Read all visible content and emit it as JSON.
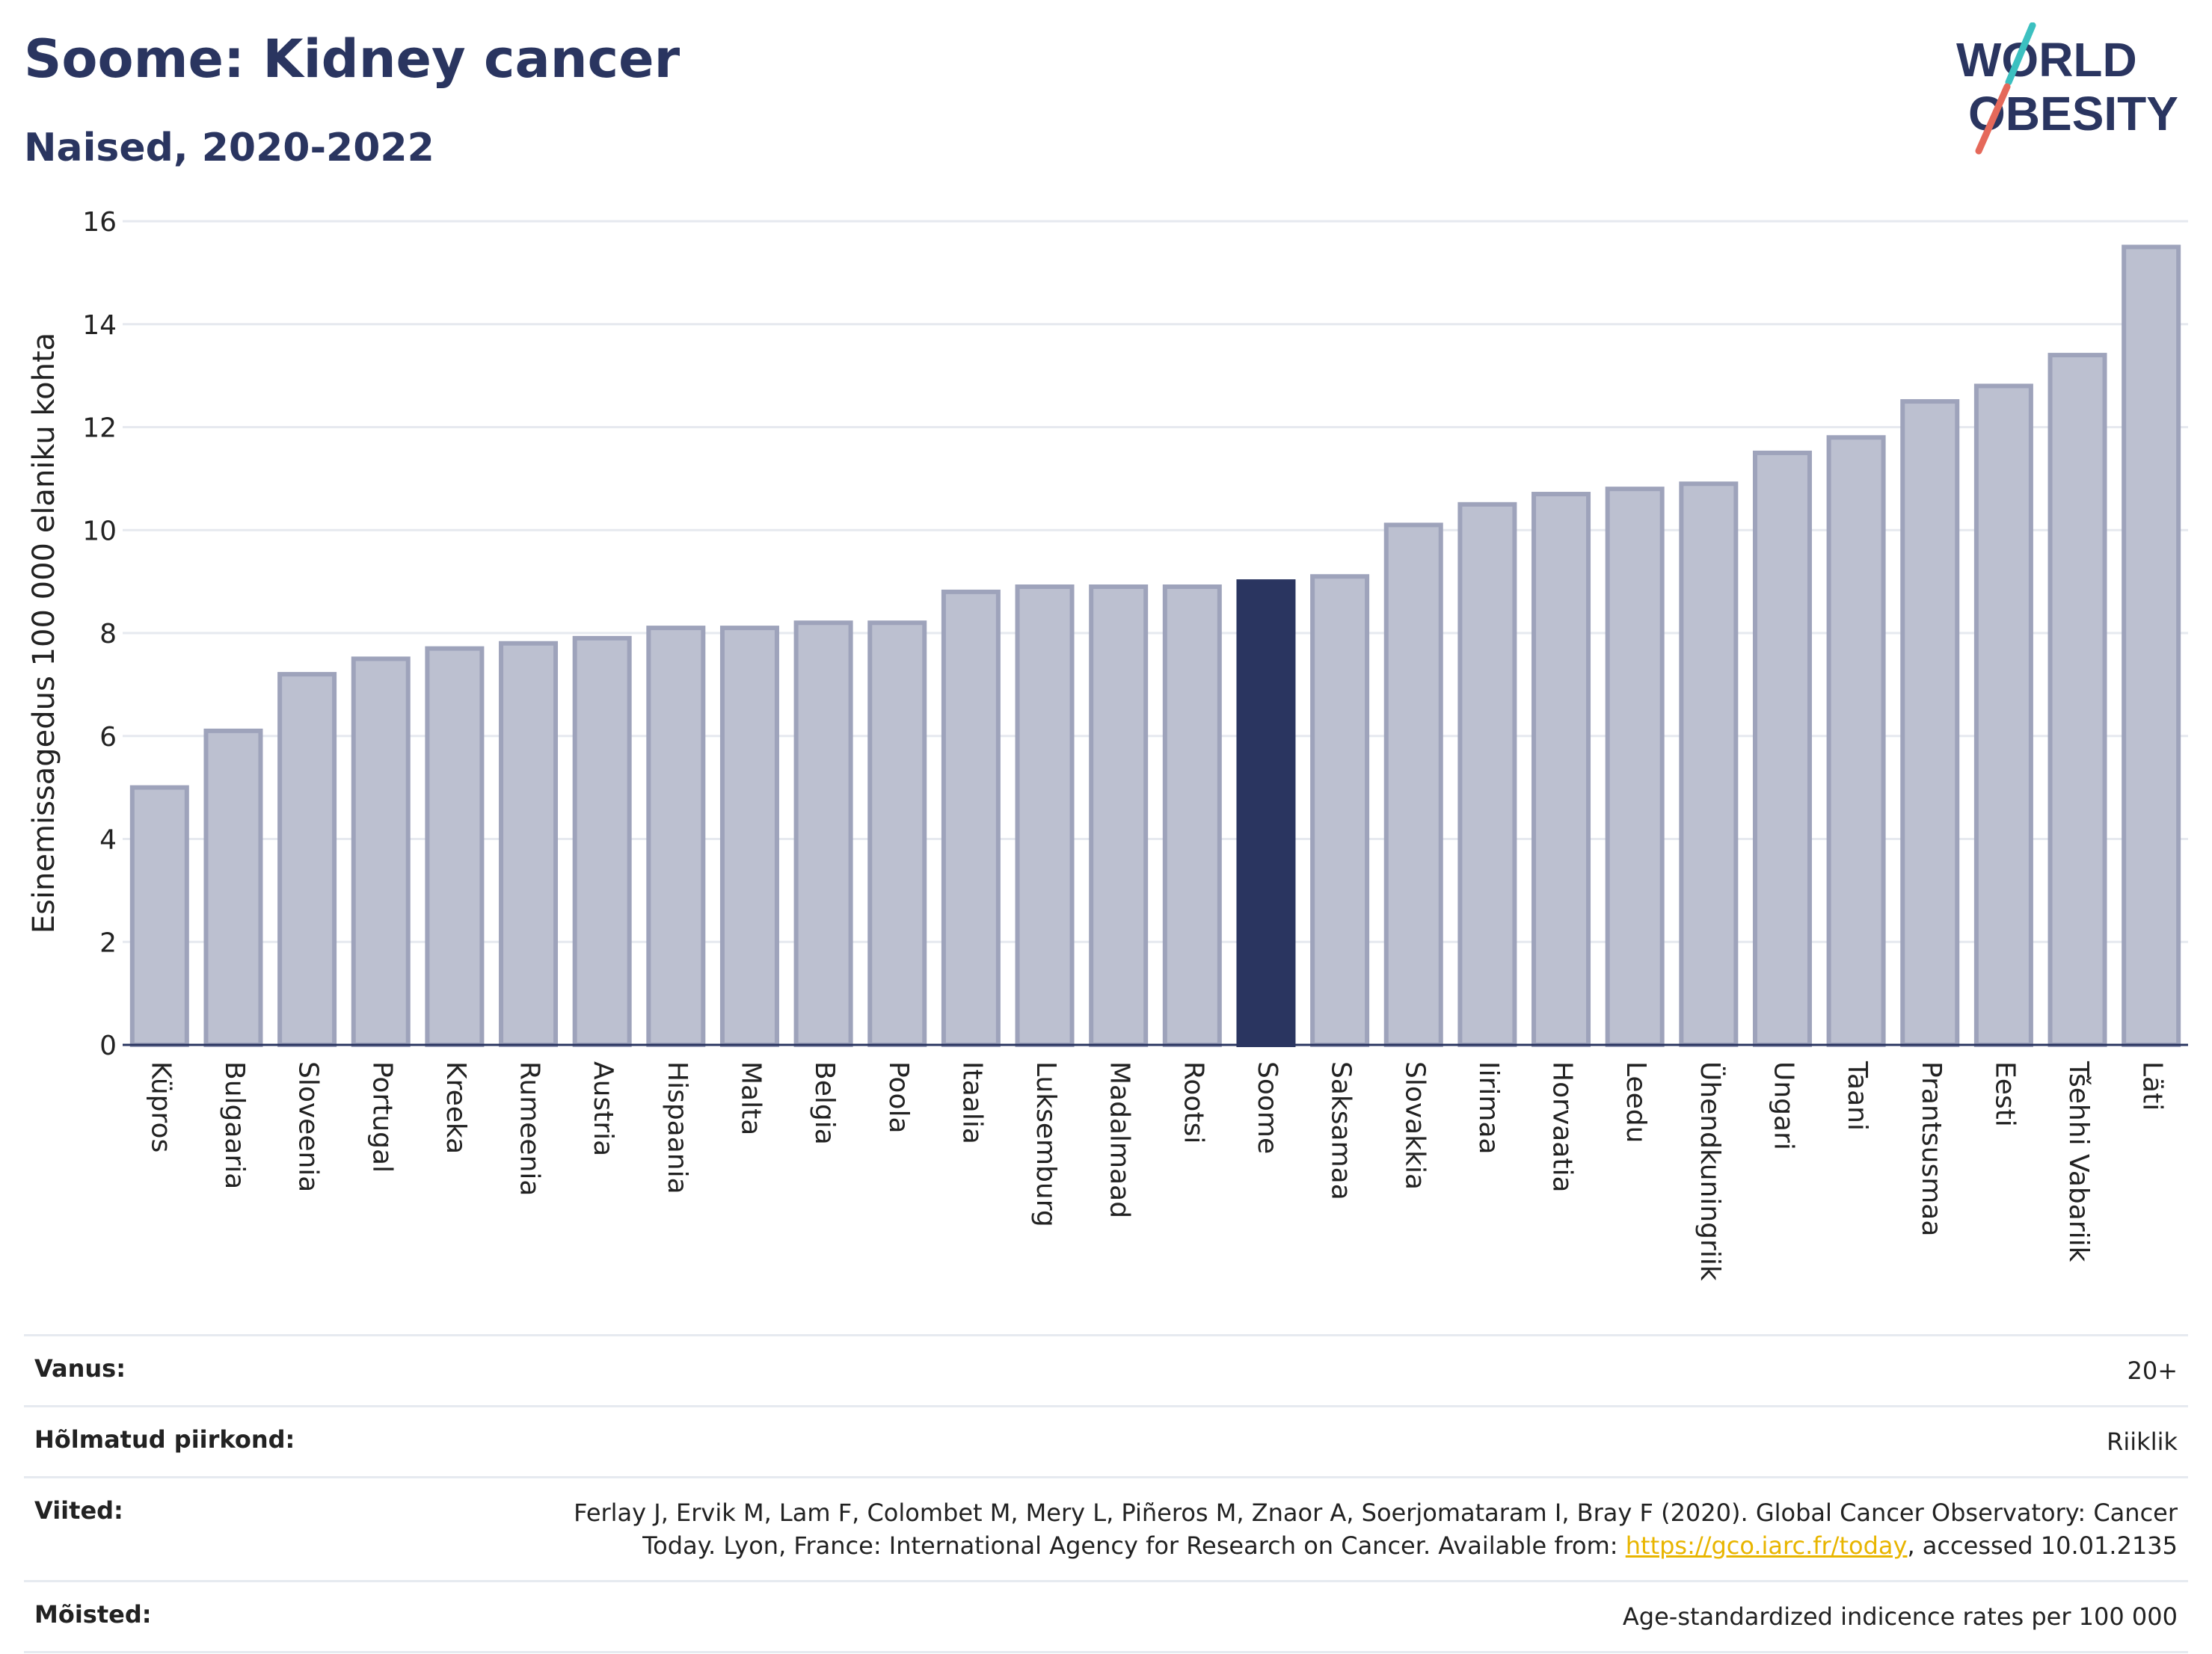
{
  "header": {
    "title": "Soome: Kidney cancer",
    "subtitle": "Naised, 2020-2022"
  },
  "logo": {
    "line1": "WORLD",
    "line2": "OBESITY"
  },
  "chart_data": {
    "type": "bar",
    "title": "Soome: Kidney cancer",
    "subtitle": "Naised, 2020-2022",
    "xlabel": "",
    "ylabel": "Esinemissagedus 100 000 elaniku kohta",
    "ylim": [
      0,
      16
    ],
    "yticks": [
      0,
      2,
      4,
      6,
      8,
      10,
      12,
      14,
      16
    ],
    "grid": true,
    "highlight": "Soome",
    "colors": {
      "bar": "#bcc0d0",
      "bar_edge": "#9ea3bb",
      "highlight": "#2a3560",
      "grid": "#e6e9ef",
      "axis": "#2a3560"
    },
    "categories": [
      "Küpros",
      "Bulgaaria",
      "Sloveenia",
      "Portugal",
      "Kreeka",
      "Rumeenia",
      "Austria",
      "Hispaania",
      "Malta",
      "Belgia",
      "Poola",
      "Itaalia",
      "Luksemburg",
      "Madalmaad",
      "Rootsi",
      "Soome",
      "Saksamaa",
      "Slovakkia",
      "Iirimaa",
      "Horvaatia",
      "Leedu",
      "Ühendkuningriik",
      "Ungari",
      "Taani",
      "Prantsusmaa",
      "Eesti",
      "Tšehhi Vabariik",
      "Läti"
    ],
    "values": [
      5.0,
      6.1,
      7.2,
      7.5,
      7.7,
      7.8,
      7.9,
      8.1,
      8.1,
      8.2,
      8.2,
      8.8,
      8.9,
      8.9,
      8.9,
      9.0,
      9.1,
      10.1,
      10.5,
      10.7,
      10.8,
      10.9,
      11.5,
      11.8,
      12.5,
      12.8,
      13.4,
      15.5
    ]
  },
  "meta": [
    {
      "label": "Vanus:",
      "value": "20+"
    },
    {
      "label": "Hõlmatud piirkond:",
      "value": "Riiklik"
    },
    {
      "label": "Viited:",
      "value_pre": "Ferlay J, Ervik M, Lam F, Colombet M, Mery L, Piñeros M, Znaor A, Soerjomataram I, Bray F (2020). Global Cancer Observatory: Cancer Today. Lyon, France: International Agency for Research on Cancer. Available from: ",
      "link": "https://gco.iarc.fr/today",
      "value_post": ", accessed 10.01.2135"
    },
    {
      "label": "Mõisted:",
      "value": "Age-standardized indicence rates per 100 000"
    }
  ]
}
